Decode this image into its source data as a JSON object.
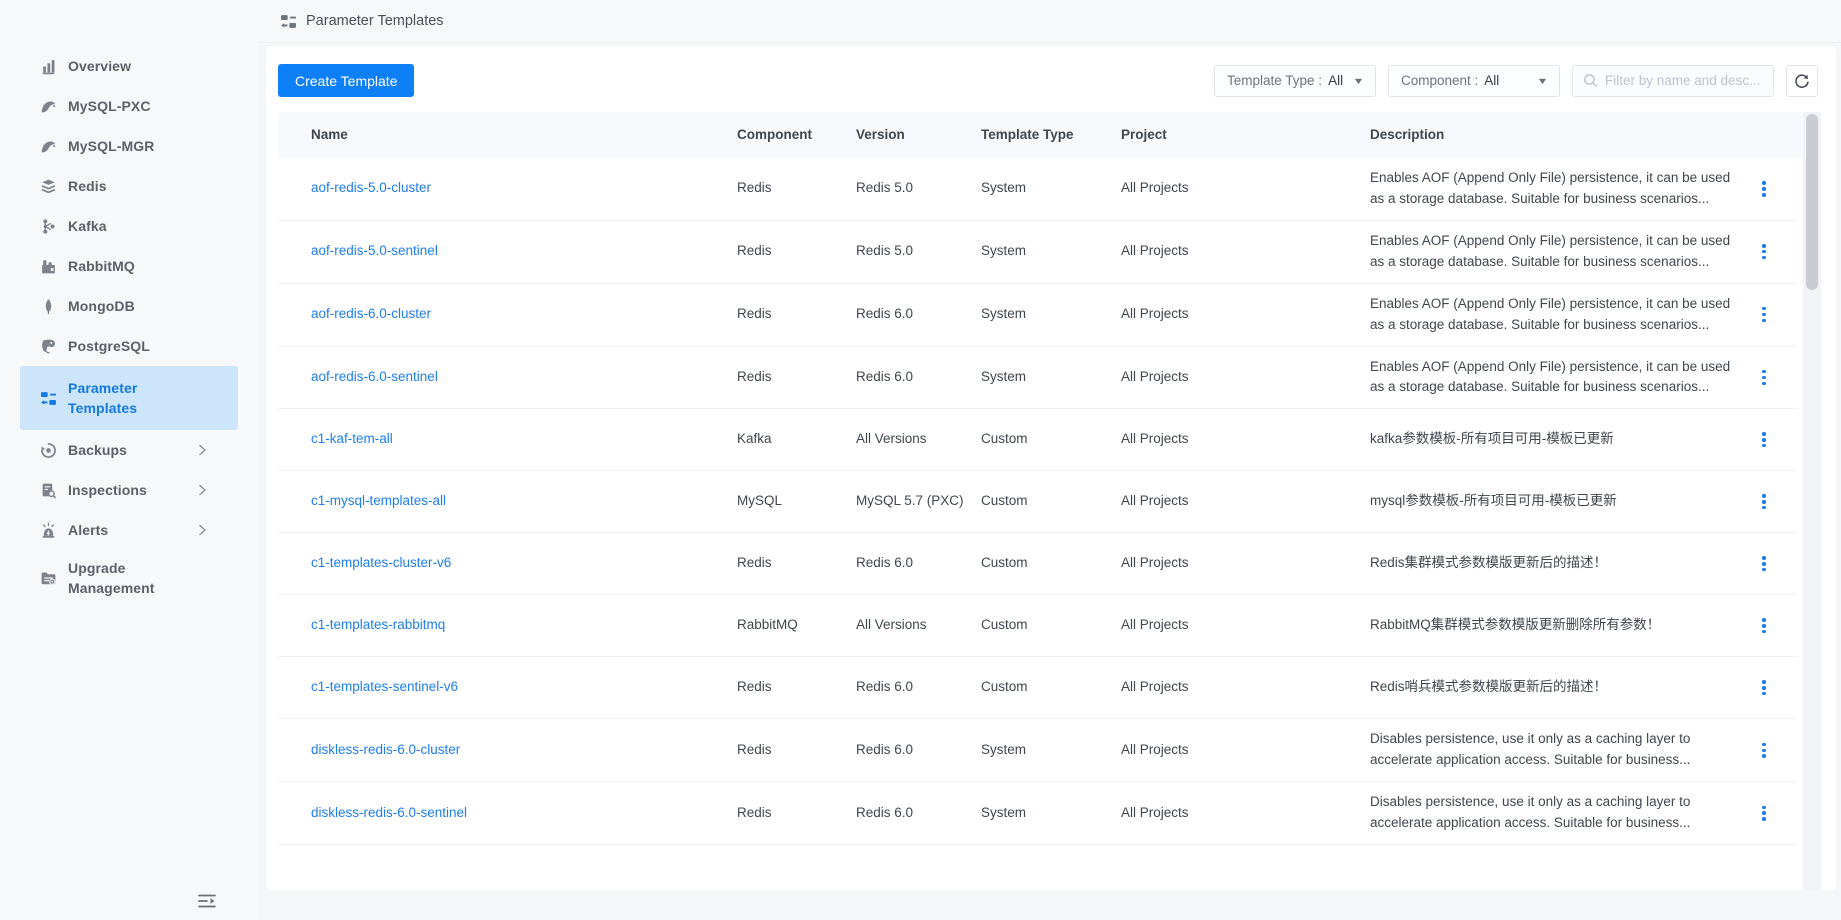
{
  "colors": {
    "accent": "#0e80f7",
    "link": "#1e7ef0",
    "sidebar_active_bg": "#cde5fb",
    "sidebar_active_text": "#147ae0",
    "icon_gray": "#7d838d"
  },
  "header": {
    "title": "Parameter Templates",
    "icon": "parameter-templates-icon"
  },
  "sidebar": {
    "items": [
      {
        "label": "Overview",
        "icon": "bar-chart-icon",
        "active": false,
        "expandable": false
      },
      {
        "label": "MySQL-PXC",
        "icon": "mysql-icon",
        "active": false,
        "expandable": false
      },
      {
        "label": "MySQL-MGR",
        "icon": "mysql-icon",
        "active": false,
        "expandable": false
      },
      {
        "label": "Redis",
        "icon": "redis-icon",
        "active": false,
        "expandable": false
      },
      {
        "label": "Kafka",
        "icon": "kafka-icon",
        "active": false,
        "expandable": false
      },
      {
        "label": "RabbitMQ",
        "icon": "rabbitmq-icon",
        "active": false,
        "expandable": false
      },
      {
        "label": "MongoDB",
        "icon": "mongodb-icon",
        "active": false,
        "expandable": false
      },
      {
        "label": "PostgreSQL",
        "icon": "postgresql-icon",
        "active": false,
        "expandable": false
      },
      {
        "label": "Parameter Templates",
        "icon": "parameter-templates-icon",
        "active": true,
        "expandable": false
      },
      {
        "label": "Backups",
        "icon": "backups-icon",
        "active": false,
        "expandable": true
      },
      {
        "label": "Inspections",
        "icon": "inspections-icon",
        "active": false,
        "expandable": true
      },
      {
        "label": "Alerts",
        "icon": "alerts-icon",
        "active": false,
        "expandable": true
      },
      {
        "label": "Upgrade Management",
        "icon": "upgrade-management-icon",
        "active": false,
        "expandable": false
      }
    ],
    "collapse_icon": "menu-fold-icon"
  },
  "toolbar": {
    "create_button": "Create Template",
    "template_type_filter": {
      "label": "Template Type :",
      "value": "All"
    },
    "component_filter": {
      "label": "Component :",
      "value": "All"
    },
    "search_placeholder": "Filter by name and desc...",
    "refresh_icon": "refresh-icon"
  },
  "table": {
    "columns": [
      "Name",
      "Component",
      "Version",
      "Template Type",
      "Project",
      "Description"
    ],
    "rows": [
      {
        "name": "aof-redis-5.0-cluster",
        "component": "Redis",
        "version": "Redis 5.0",
        "template_type": "System",
        "project": "All Projects",
        "description": "Enables AOF (Append Only File) persistence, it can be used as a storage database. Suitable for business scenarios..."
      },
      {
        "name": "aof-redis-5.0-sentinel",
        "component": "Redis",
        "version": "Redis 5.0",
        "template_type": "System",
        "project": "All Projects",
        "description": "Enables AOF (Append Only File) persistence, it can be used as a storage database. Suitable for business scenarios..."
      },
      {
        "name": "aof-redis-6.0-cluster",
        "component": "Redis",
        "version": "Redis 6.0",
        "template_type": "System",
        "project": "All Projects",
        "description": "Enables AOF (Append Only File) persistence, it can be used as a storage database. Suitable for business scenarios..."
      },
      {
        "name": "aof-redis-6.0-sentinel",
        "component": "Redis",
        "version": "Redis 6.0",
        "template_type": "System",
        "project": "All Projects",
        "description": "Enables AOF (Append Only File) persistence, it can be used as a storage database. Suitable for business scenarios..."
      },
      {
        "name": "c1-kaf-tem-all",
        "component": "Kafka",
        "version": "All Versions",
        "template_type": "Custom",
        "project": "All Projects",
        "description": "kafka参数模板-所有项目可用-模板已更新"
      },
      {
        "name": "c1-mysql-templates-all",
        "component": "MySQL",
        "version": "MySQL 5.7 (PXC)",
        "template_type": "Custom",
        "project": "All Projects",
        "description": "mysql参数模板-所有项目可用-模板已更新"
      },
      {
        "name": "c1-templates-cluster-v6",
        "component": "Redis",
        "version": "Redis 6.0",
        "template_type": "Custom",
        "project": "All Projects",
        "description": "Redis集群模式参数模版更新后的描述！"
      },
      {
        "name": "c1-templates-rabbitmq",
        "component": "RabbitMQ",
        "version": "All Versions",
        "template_type": "Custom",
        "project": "All Projects",
        "description": "RabbitMQ集群模式参数模版更新删除所有参数！"
      },
      {
        "name": "c1-templates-sentinel-v6",
        "component": "Redis",
        "version": "Redis 6.0",
        "template_type": "Custom",
        "project": "All Projects",
        "description": "Redis哨兵模式参数模版更新后的描述！"
      },
      {
        "name": "diskless-redis-6.0-cluster",
        "component": "Redis",
        "version": "Redis 6.0",
        "template_type": "System",
        "project": "All Projects",
        "description": "Disables persistence, use it only as a caching layer to accelerate application access. Suitable for business..."
      },
      {
        "name": "diskless-redis-6.0-sentinel",
        "component": "Redis",
        "version": "Redis 6.0",
        "template_type": "System",
        "project": "All Projects",
        "description": "Disables persistence, use it only as a caching layer to accelerate application access. Suitable for business..."
      }
    ]
  }
}
